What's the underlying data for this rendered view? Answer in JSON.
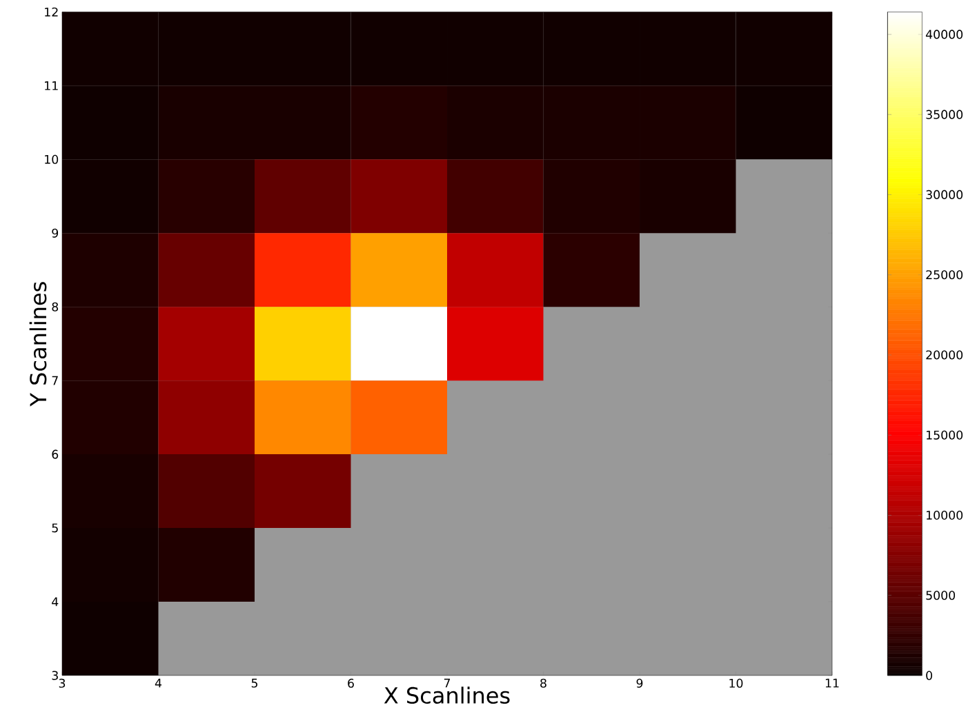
{
  "chart_data": {
    "type": "heatmap",
    "xlabel": "X Scanlines",
    "ylabel": "Y Scanlines",
    "xlim": [
      3,
      11
    ],
    "ylim": [
      3,
      12
    ],
    "xticks": [
      3,
      4,
      5,
      6,
      7,
      8,
      9,
      10,
      11
    ],
    "yticks": [
      3,
      4,
      5,
      6,
      7,
      8,
      9,
      10,
      11,
      12
    ],
    "cells": [
      [
        400,
        400,
        400,
        400,
        400,
        400,
        400,
        400
      ],
      [
        300,
        900,
        900,
        1500,
        1000,
        1000,
        1000,
        300
      ],
      [
        400,
        1800,
        5300,
        7200,
        3400,
        1300,
        900,
        null
      ],
      [
        1200,
        5700,
        17600,
        25000,
        11300,
        2000,
        null,
        null
      ],
      [
        1500,
        9500,
        28000,
        41400,
        13000,
        null,
        null,
        null
      ],
      [
        1400,
        8200,
        23500,
        21100,
        null,
        null,
        null,
        null
      ],
      [
        800,
        4400,
        6600,
        null,
        null,
        null,
        null,
        null
      ],
      [
        500,
        1400,
        null,
        null,
        null,
        null,
        null,
        null
      ],
      [
        300,
        null,
        null,
        null,
        null,
        null,
        null,
        null
      ]
    ],
    "clim": [
      0,
      41400
    ],
    "cticks": [
      0,
      5000,
      10000,
      15000,
      20000,
      25000,
      30000,
      35000,
      40000
    ]
  }
}
